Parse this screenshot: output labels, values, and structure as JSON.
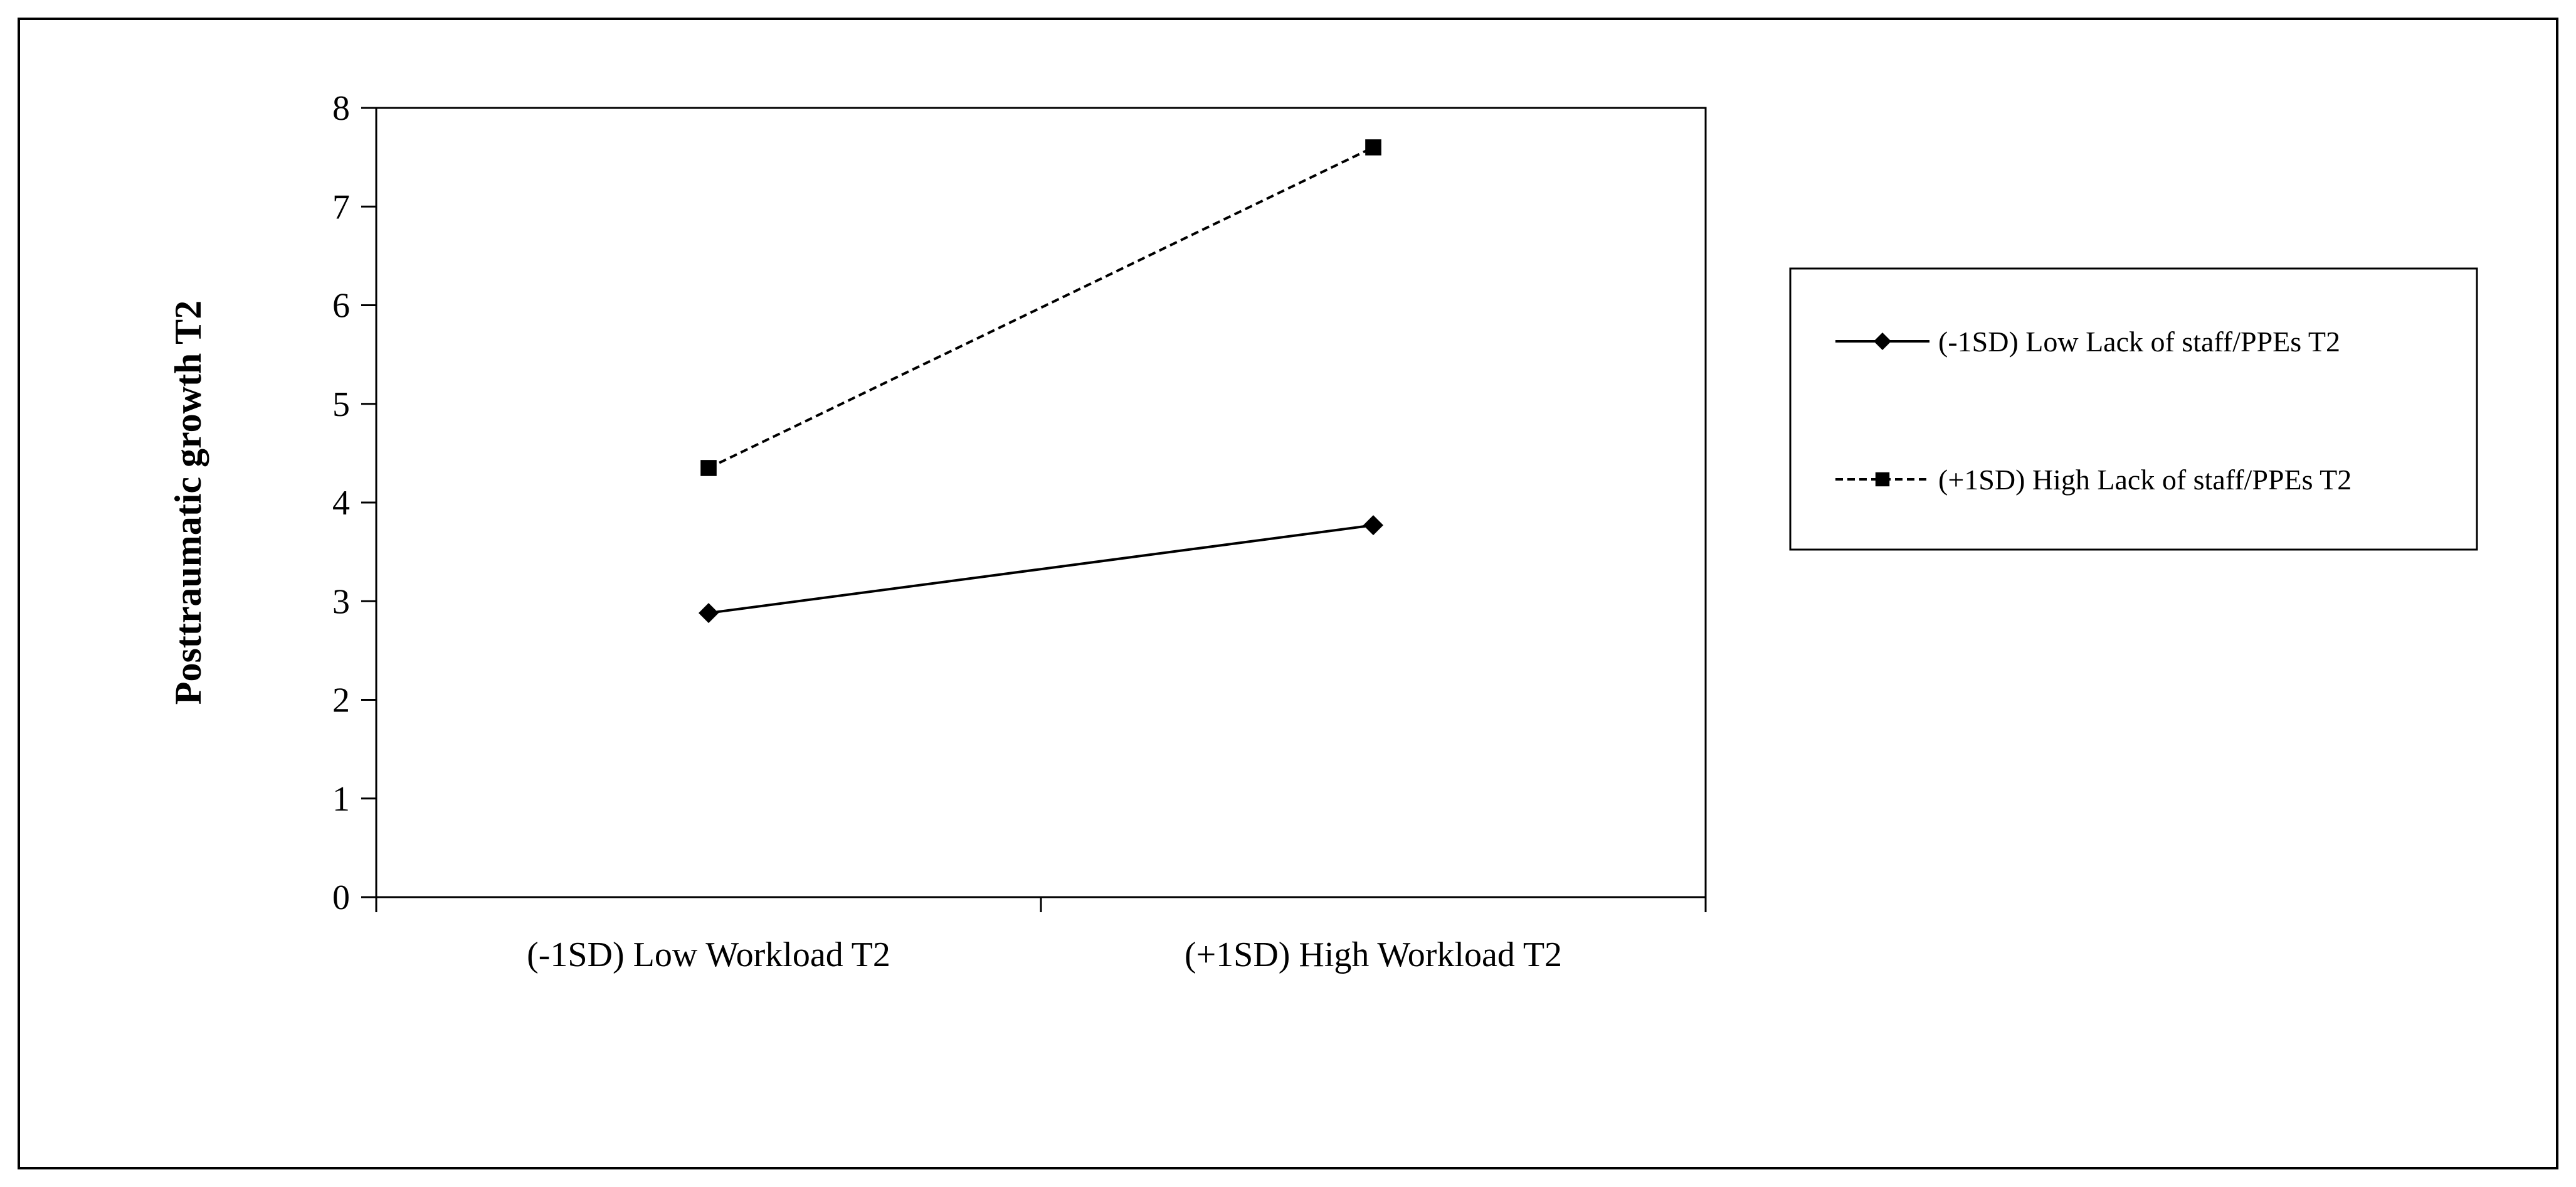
{
  "chart_data": {
    "type": "line",
    "title": "",
    "xlabel": "",
    "ylabel": "Posttraumatic growth T2",
    "categories": [
      "(-1SD) Low Workload T2",
      "(+1SD) High Workload T2"
    ],
    "ylim": [
      0,
      8
    ],
    "yticks": [
      0,
      1,
      2,
      3,
      4,
      5,
      6,
      7,
      8
    ],
    "grid": false,
    "legend_position": "right",
    "series": [
      {
        "name": "(-1SD) Low Lack of staff/PPEs T2",
        "values": [
          2.88,
          3.77
        ],
        "line_style": "solid",
        "marker": "diamond",
        "color": "#000000"
      },
      {
        "name": "(+1SD) High Lack of staff/PPEs T2",
        "values": [
          4.35,
          7.6
        ],
        "line_style": "dashed",
        "marker": "square",
        "color": "#000000"
      }
    ]
  }
}
